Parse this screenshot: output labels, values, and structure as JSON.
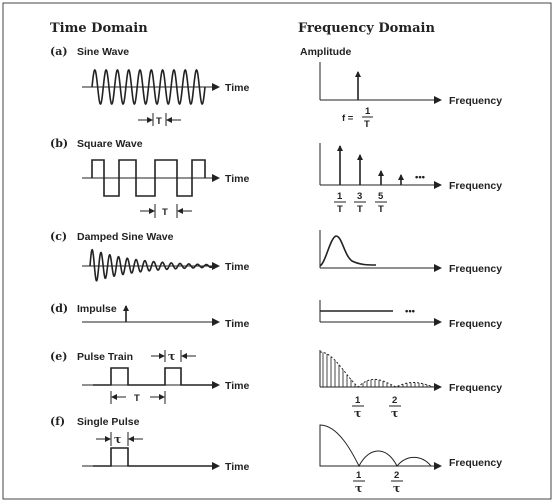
{
  "headers": {
    "time": "Time Domain",
    "frequency": "Frequency Domain"
  },
  "rows": [
    {
      "label": "(a)",
      "name": "Sine Wave",
      "x_axis": "Time",
      "period": "T",
      "f_axis": "Frequency",
      "amplitude": "Amplitude",
      "f_eq": "f =",
      "f_num": "1",
      "f_den": "T"
    },
    {
      "label": "(b)",
      "name": "Square Wave",
      "x_axis": "Time",
      "period": "T",
      "f_axis": "Frequency",
      "ticks": [
        {
          "num": "1",
          "den": "T"
        },
        {
          "num": "3",
          "den": "T"
        },
        {
          "num": "5",
          "den": "T"
        }
      ],
      "ellipsis": "•••"
    },
    {
      "label": "(c)",
      "name": "Damped Sine Wave",
      "x_axis": "Time",
      "f_axis": "Frequency"
    },
    {
      "label": "(d)",
      "name": "Impulse",
      "x_axis": "Time",
      "f_axis": "Frequency",
      "ellipsis": "•••"
    },
    {
      "label": "(e)",
      "name": "Pulse Train",
      "x_axis": "Time",
      "width_sym": "τ",
      "period": "T",
      "f_axis": "Frequency",
      "ticks": [
        {
          "num": "1",
          "den": "τ"
        },
        {
          "num": "2",
          "den": "τ"
        }
      ]
    },
    {
      "label": "(f)",
      "name": "Single Pulse",
      "x_axis": "Time",
      "width_sym": "τ",
      "f_axis": "Frequency",
      "ticks": [
        {
          "num": "1",
          "den": "τ"
        },
        {
          "num": "2",
          "den": "τ"
        }
      ]
    }
  ]
}
